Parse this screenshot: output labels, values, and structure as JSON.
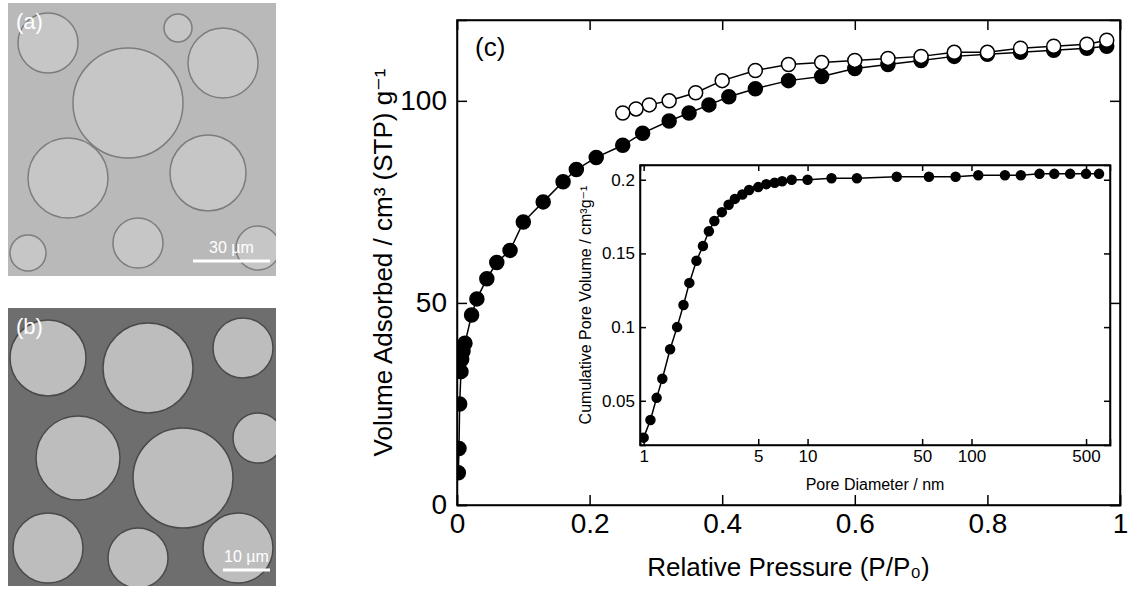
{
  "images": [
    {
      "label": "(a)",
      "scale_bar": "30 µm"
    },
    {
      "label": "(b)",
      "scale_bar": "10 µm"
    }
  ],
  "chart_data": [
    {
      "type": "line",
      "annotations": [
        "(c)"
      ],
      "x_label": "Relative Pressure (P/P₀)",
      "y_label": "Volume Adsorbed / cm³ (STP) g⁻¹",
      "xlim": [
        0,
        1
      ],
      "xticks": [
        0,
        0.2,
        0.4,
        0.6,
        0.8,
        1
      ],
      "ylim": [
        0,
        120
      ],
      "yticks": [
        0,
        50,
        100
      ],
      "series": [
        {
          "color": "#000000",
          "marker": "circle-filled",
          "line_style": "solid",
          "x": [
            0.002,
            0.003,
            0.004,
            0.006,
            0.007,
            0.009,
            0.012,
            0.022,
            0.03,
            0.045,
            0.06,
            0.08,
            0.1,
            0.13,
            0.16,
            0.18,
            0.21,
            0.25,
            0.28,
            0.32,
            0.35,
            0.38,
            0.41,
            0.45,
            0.5,
            0.55,
            0.6,
            0.65,
            0.7,
            0.75,
            0.8,
            0.85,
            0.9,
            0.95,
            0.98
          ],
          "values": [
            8,
            14,
            25,
            33,
            36,
            38,
            40,
            47,
            51,
            56,
            60,
            63,
            70,
            75,
            80,
            83,
            86,
            89,
            92,
            95,
            97,
            99,
            101,
            103,
            105,
            106,
            108,
            109,
            110,
            111,
            111.5,
            112,
            112.5,
            113,
            113.5
          ]
        },
        {
          "color": "#000000",
          "marker": "circle-open",
          "line_style": "solid",
          "x": [
            0.98,
            0.95,
            0.9,
            0.85,
            0.8,
            0.75,
            0.7,
            0.65,
            0.6,
            0.55,
            0.5,
            0.45,
            0.4,
            0.36,
            0.32,
            0.29,
            0.27,
            0.25
          ],
          "values": [
            115,
            114,
            113.5,
            113,
            112,
            112,
            111,
            110.5,
            110,
            109.5,
            109,
            107.5,
            105,
            102,
            100,
            99,
            98,
            97
          ]
        }
      ]
    },
    {
      "type": "line",
      "x_label": "Pore Diameter / nm",
      "y_label": "Cumulative Pore Volume / cm³g⁻¹",
      "log": "x",
      "xlim": [
        0.95,
        700
      ],
      "xticks": [
        1,
        5,
        10,
        50,
        100,
        500
      ],
      "ylim": [
        0.02,
        0.21
      ],
      "yticks": [
        0.05,
        0.1,
        0.15,
        0.2
      ],
      "series": [
        {
          "color": "#000000",
          "marker": "circle-filled",
          "line_style": "solid",
          "x": [
            1,
            1.1,
            1.2,
            1.3,
            1.45,
            1.6,
            1.75,
            1.9,
            2.1,
            2.3,
            2.5,
            2.7,
            3,
            3.3,
            3.6,
            4,
            4.4,
            5,
            5.6,
            6.3,
            7,
            8,
            10,
            14,
            20,
            35,
            55,
            80,
            110,
            160,
            200,
            260,
            320,
            400,
            500,
            600
          ],
          "values": [
            0.025,
            0.037,
            0.052,
            0.065,
            0.085,
            0.1,
            0.115,
            0.13,
            0.145,
            0.155,
            0.165,
            0.172,
            0.178,
            0.183,
            0.187,
            0.19,
            0.193,
            0.195,
            0.197,
            0.198,
            0.199,
            0.2,
            0.2,
            0.201,
            0.201,
            0.202,
            0.202,
            0.202,
            0.203,
            0.203,
            0.203,
            0.204,
            0.204,
            0.204,
            0.204,
            0.204
          ]
        }
      ]
    }
  ]
}
